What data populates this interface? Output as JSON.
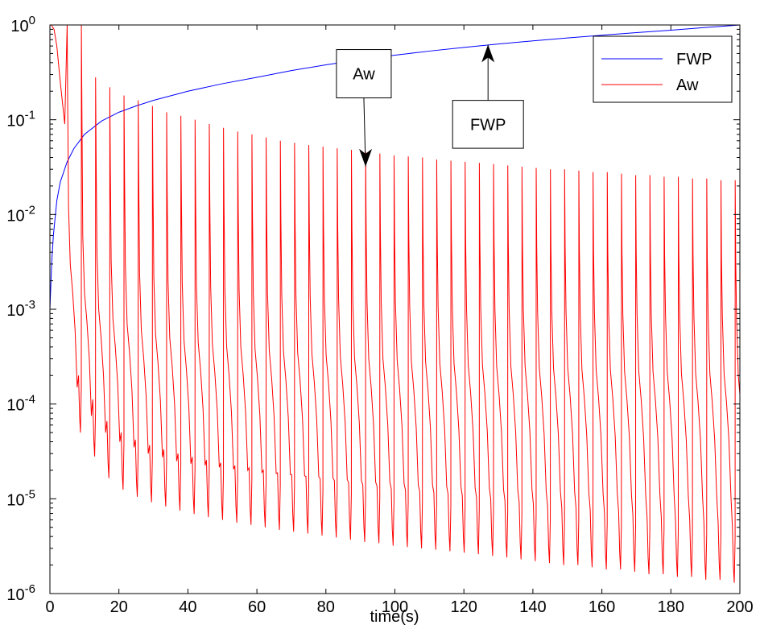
{
  "chart_data": {
    "type": "line",
    "title": "",
    "xlabel": "time(s)",
    "ylabel": "",
    "xlim": [
      0,
      200
    ],
    "ylim": [
      1e-06,
      1
    ],
    "yscale": "log",
    "grid": false,
    "legend_position": "top-right",
    "x_ticks": [
      0,
      20,
      40,
      60,
      80,
      100,
      120,
      140,
      160,
      180,
      200
    ],
    "x_tick_labels": [
      "0",
      "20",
      "40",
      "60",
      "80",
      "100",
      "120",
      "140",
      "160",
      "180",
      "200"
    ],
    "y_ticks": [
      {
        "value": 1,
        "base": "10",
        "exp": "0"
      },
      {
        "value": 0.1,
        "base": "10",
        "exp": "-1"
      },
      {
        "value": 0.01,
        "base": "10",
        "exp": "-2"
      },
      {
        "value": 0.001,
        "base": "10",
        "exp": "-3"
      },
      {
        "value": 0.0001,
        "base": "10",
        "exp": "-4"
      },
      {
        "value": 1e-05,
        "base": "10",
        "exp": "-5"
      },
      {
        "value": 1e-06,
        "base": "10",
        "exp": "-6"
      }
    ],
    "series": [
      {
        "name": "FWP",
        "color": "#0000ff",
        "x": [
          0,
          0.5,
          1,
          2,
          3,
          5,
          7,
          10,
          15,
          20,
          25,
          30,
          40,
          50,
          60,
          70,
          80,
          90,
          100,
          110,
          120,
          130,
          140,
          150,
          160,
          170,
          180,
          190,
          200
        ],
        "y": [
          0.001,
          0.003,
          0.006,
          0.014,
          0.022,
          0.036,
          0.05,
          0.07,
          0.097,
          0.12,
          0.14,
          0.16,
          0.2,
          0.24,
          0.28,
          0.33,
          0.38,
          0.43,
          0.48,
          0.53,
          0.58,
          0.63,
          0.68,
          0.73,
          0.78,
          0.83,
          0.88,
          0.94,
          1.0
        ]
      },
      {
        "name": "Aw",
        "color": "#ff0000",
        "period": 4.12,
        "first_spike": 5,
        "peak_values": [
          1,
          1,
          0.28,
          0.22,
          0.18,
          0.16,
          0.14,
          0.12,
          0.11,
          0.1,
          0.09,
          0.082,
          0.075,
          0.07,
          0.065,
          0.06,
          0.057,
          0.054,
          0.052,
          0.05,
          0.048,
          0.046,
          0.044,
          0.042,
          0.041,
          0.04,
          0.038,
          0.037,
          0.036,
          0.035,
          0.034,
          0.033,
          0.032,
          0.031,
          0.03,
          0.03,
          0.029,
          0.028,
          0.028,
          0.027,
          0.026,
          0.026,
          0.025,
          0.025,
          0.024,
          0.024,
          0.023,
          0.023
        ],
        "min_values": [
          5e-05,
          2.8e-05,
          1.65e-05,
          1.25e-05,
          1.05e-05,
          9.2e-06,
          8.3e-06,
          7.5e-06,
          6.9e-06,
          6.4e-06,
          6e-06,
          5.6e-06,
          5.3e-06,
          5e-06,
          4.7e-06,
          4.5e-06,
          4.3e-06,
          4.1e-06,
          3.9e-06,
          3.7e-06,
          3.5e-06,
          3.4e-06,
          3.2e-06,
          3.1e-06,
          3e-06,
          2.9e-06,
          2.8e-06,
          2.7e-06,
          2.6e-06,
          2.5e-06,
          2.4e-06,
          2.3e-06,
          2.2e-06,
          2.1e-06,
          2e-06,
          2e-06,
          1.9e-06,
          1.8e-06,
          1.8e-06,
          1.7e-06,
          1.6e-06,
          1.6e-06,
          1.5e-06,
          1.5e-06,
          1.4e-06,
          1.4e-06,
          1.3e-06,
          1.3e-06
        ],
        "plateau_values": [
          0.003,
          0.0015,
          0.001,
          0.0008,
          0.0007,
          0.0006,
          0.00055,
          0.0005,
          0.00047,
          0.00045,
          0.00043,
          0.00041,
          0.0004,
          0.00038,
          0.00037,
          0.00036,
          0.00035,
          0.00034,
          0.00033,
          0.00032,
          0.00031,
          0.0003,
          0.0003,
          0.00029,
          0.00028,
          0.00028,
          0.00027,
          0.00027,
          0.00026,
          0.00026,
          0.00025,
          0.00025,
          0.00025,
          0.00024,
          0.00024,
          0.00024,
          0.00023,
          0.00023,
          0.00023,
          0.00022,
          0.00022,
          0.00022,
          0.00022,
          0.00021,
          0.00021,
          0.00021,
          0.00021,
          0.0002
        ]
      }
    ],
    "annotations": [
      {
        "text": "Aw",
        "box_x": 91,
        "box_y_top": 0.55,
        "box_y_bottom": 0.17,
        "arrow_to_x": 91.5,
        "arrow_to_y": 0.032
      },
      {
        "text": "FWP",
        "box_x": 127,
        "box_y_top": 0.16,
        "box_y_bottom": 0.05,
        "arrow_to_x": 127,
        "arrow_to_y": 0.62
      }
    ]
  }
}
